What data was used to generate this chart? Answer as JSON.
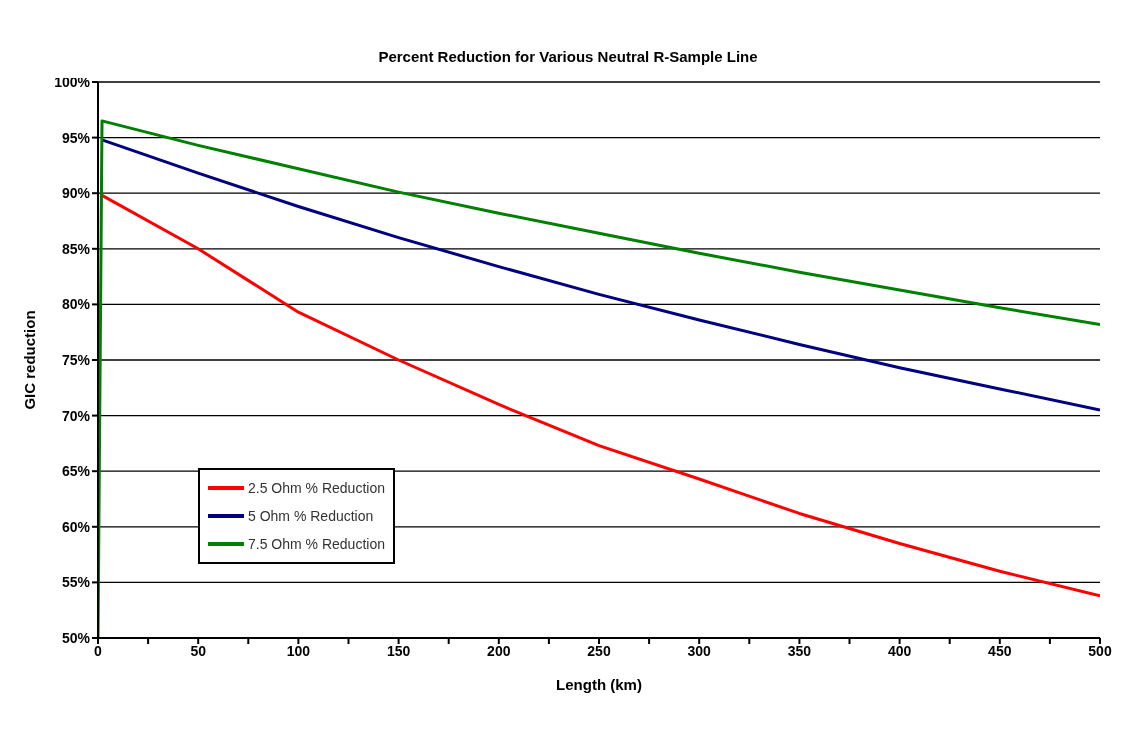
{
  "chart_data": {
    "type": "line",
    "title": "Percent Reduction for Various Neutral R-Sample Line",
    "xlabel": "Length (km)",
    "ylabel": "GIC reduction",
    "xlim": [
      0,
      500
    ],
    "ylim": [
      50,
      100
    ],
    "xticks": [
      0,
      {
        "value": 25,
        "label": null
      },
      50,
      {
        "value": 75,
        "label": null
      },
      100,
      {
        "value": 125,
        "label": null
      },
      150,
      {
        "value": 175,
        "label": null
      },
      200,
      {
        "value": 225,
        "label": null
      },
      250,
      {
        "value": 275,
        "label": null
      },
      300,
      {
        "value": 325,
        "label": null
      },
      350,
      {
        "value": 375,
        "label": null
      },
      400,
      {
        "value": 425,
        "label": null
      },
      450,
      {
        "value": 475,
        "label": null
      },
      500
    ],
    "yticks": [
      {
        "value": 50,
        "label": "50%"
      },
      {
        "value": 55,
        "label": "55%"
      },
      {
        "value": 60,
        "label": "60%"
      },
      {
        "value": 65,
        "label": "65%"
      },
      {
        "value": 70,
        "label": "70%"
      },
      {
        "value": 75,
        "label": "75%"
      },
      {
        "value": 80,
        "label": "80%"
      },
      {
        "value": 85,
        "label": "85%"
      },
      {
        "value": 90,
        "label": "90%"
      },
      {
        "value": 95,
        "label": "95%"
      },
      {
        "value": 100,
        "label": "100%"
      }
    ],
    "grid": "y",
    "legend": "left",
    "marker": "none",
    "line_style": "solid",
    "series": [
      {
        "name": "2.5 Ohm % Reduction",
        "color": "#ff0000",
        "x": [
          2,
          50,
          100,
          150,
          200,
          250,
          300,
          350,
          400,
          450,
          500
        ],
        "values": [
          89.8,
          85.0,
          79.3,
          75.0,
          71.0,
          67.3,
          64.3,
          61.2,
          58.5,
          56.0,
          53.8
        ]
      },
      {
        "name": "5 Ohm % Reduction",
        "color": "#000080",
        "x": [
          2,
          50,
          100,
          150,
          200,
          250,
          300,
          350,
          400,
          450,
          500
        ],
        "values": [
          94.8,
          91.8,
          88.8,
          86.0,
          83.4,
          80.9,
          78.6,
          76.4,
          74.3,
          72.4,
          70.5
        ]
      },
      {
        "name": "7.5 Ohm % Reduction",
        "color": "#008000",
        "x": [
          0,
          2,
          50,
          100,
          150,
          200,
          250,
          300,
          350,
          400,
          450,
          500
        ],
        "values": [
          50,
          96.5,
          94.3,
          92.2,
          90.1,
          88.2,
          86.4,
          84.6,
          82.9,
          81.3,
          79.7,
          78.2
        ]
      }
    ]
  }
}
